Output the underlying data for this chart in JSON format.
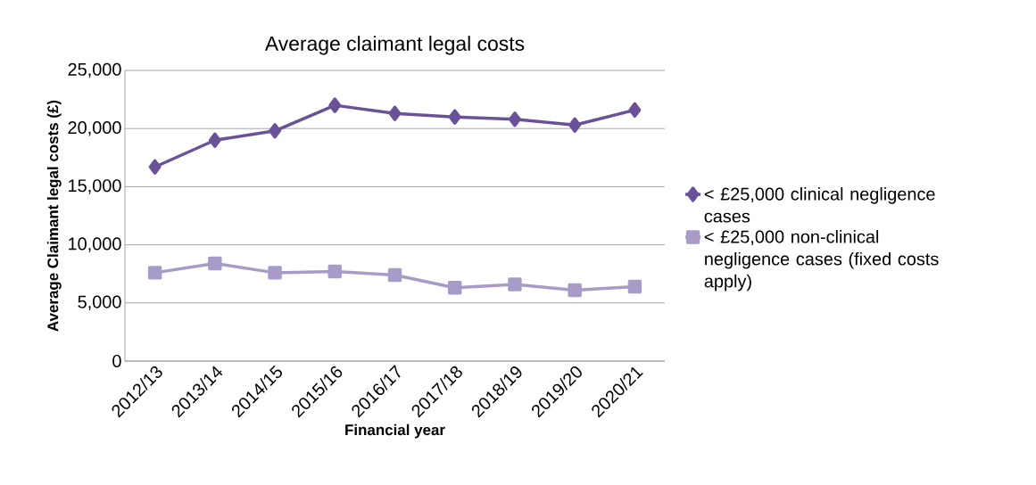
{
  "chart_data": {
    "type": "line",
    "title": "Average claimant legal costs",
    "xlabel": "Financial year",
    "ylabel": "Average Claimant legal costs (£)",
    "categories": [
      "2012/13",
      "2013/14",
      "2014/15",
      "2015/16",
      "2016/17",
      "2017/18",
      "2018/19",
      "2019/20",
      "2020/21"
    ],
    "series": [
      {
        "name": "< £25,000 clinical negligence cases",
        "color": "#6a5298",
        "marker": "diamond",
        "values": [
          16700,
          19000,
          19800,
          22000,
          21300,
          21000,
          20800,
          20300,
          21600
        ]
      },
      {
        "name": "< £25,000 non-clinical negligence cases (fixed costs apply)",
        "color": "#a99bc7",
        "marker": "square",
        "values": [
          7600,
          8400,
          7600,
          7700,
          7400,
          6300,
          6600,
          6100,
          6400
        ]
      }
    ],
    "ylim": [
      0,
      25000
    ],
    "yticks": [
      {
        "value": 0,
        "label": "0"
      },
      {
        "value": 5000,
        "label": "5,000"
      },
      {
        "value": 10000,
        "label": "10,000"
      },
      {
        "value": 15000,
        "label": "15,000"
      },
      {
        "value": 20000,
        "label": "20,000"
      },
      {
        "value": 25000,
        "label": "25,000"
      }
    ],
    "grid": "y",
    "legend": "right",
    "line_style": "solid"
  }
}
